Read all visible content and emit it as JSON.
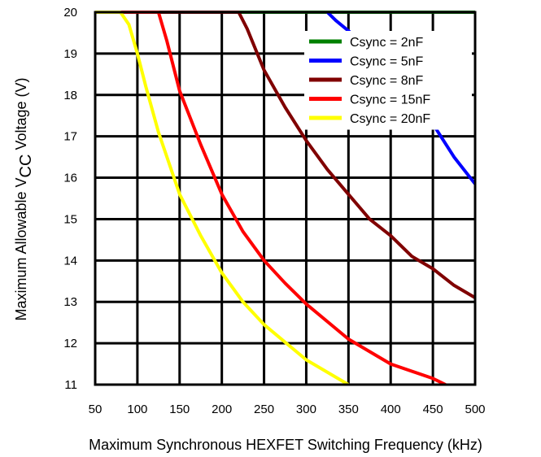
{
  "chart_data": {
    "type": "line",
    "title": "",
    "xlabel": "Maximum Synchronous HEXFET Switching Frequency (kHz)",
    "ylabel_prefix": "Maximum Allowable V",
    "ylabel_sub": "CC",
    "ylabel_suffix": " Voltage (V)",
    "xlim": [
      50,
      500
    ],
    "ylim": [
      11,
      20
    ],
    "xticks": [
      50,
      100,
      150,
      200,
      250,
      300,
      350,
      400,
      450,
      500
    ],
    "yticks": [
      11,
      12,
      13,
      14,
      15,
      16,
      17,
      18,
      19,
      20
    ],
    "grid": true,
    "legend_position": "top-right",
    "series": [
      {
        "name": "Csync = 2nF",
        "color": "#008000",
        "x": [
          50,
          500
        ],
        "y": [
          20,
          20
        ]
      },
      {
        "name": "Csync = 5nF",
        "color": "#0000FF",
        "x": [
          325,
          335,
          350,
          375,
          400,
          425,
          450,
          475,
          500
        ],
        "y": [
          20,
          19.8,
          19.55,
          19.1,
          18.6,
          18.0,
          17.3,
          16.5,
          15.85
        ]
      },
      {
        "name": "Csync = 8nF",
        "color": "#800000",
        "x": [
          50,
          220,
          230,
          250,
          275,
          300,
          325,
          350,
          375,
          400,
          425,
          450,
          475,
          500
        ],
        "y": [
          20,
          20,
          19.6,
          18.6,
          17.7,
          16.9,
          16.2,
          15.6,
          15.0,
          14.6,
          14.1,
          13.8,
          13.4,
          13.1
        ]
      },
      {
        "name": "Csync = 15nF",
        "color": "#FF0000",
        "x": [
          50,
          125,
          135,
          150,
          175,
          200,
          225,
          250,
          275,
          300,
          350,
          400,
          450,
          465
        ],
        "y": [
          20,
          20,
          19.3,
          18.1,
          16.8,
          15.6,
          14.7,
          14.0,
          13.45,
          12.95,
          12.1,
          11.5,
          11.15,
          11.0
        ]
      },
      {
        "name": "Csync = 20nF",
        "color": "#FFFF00",
        "x": [
          50,
          80,
          90,
          100,
          110,
          125,
          150,
          175,
          200,
          225,
          250,
          300,
          350
        ],
        "y": [
          20,
          20,
          19.7,
          19.0,
          18.2,
          17.1,
          15.6,
          14.6,
          13.7,
          13.0,
          12.45,
          11.6,
          11.0
        ]
      }
    ]
  }
}
